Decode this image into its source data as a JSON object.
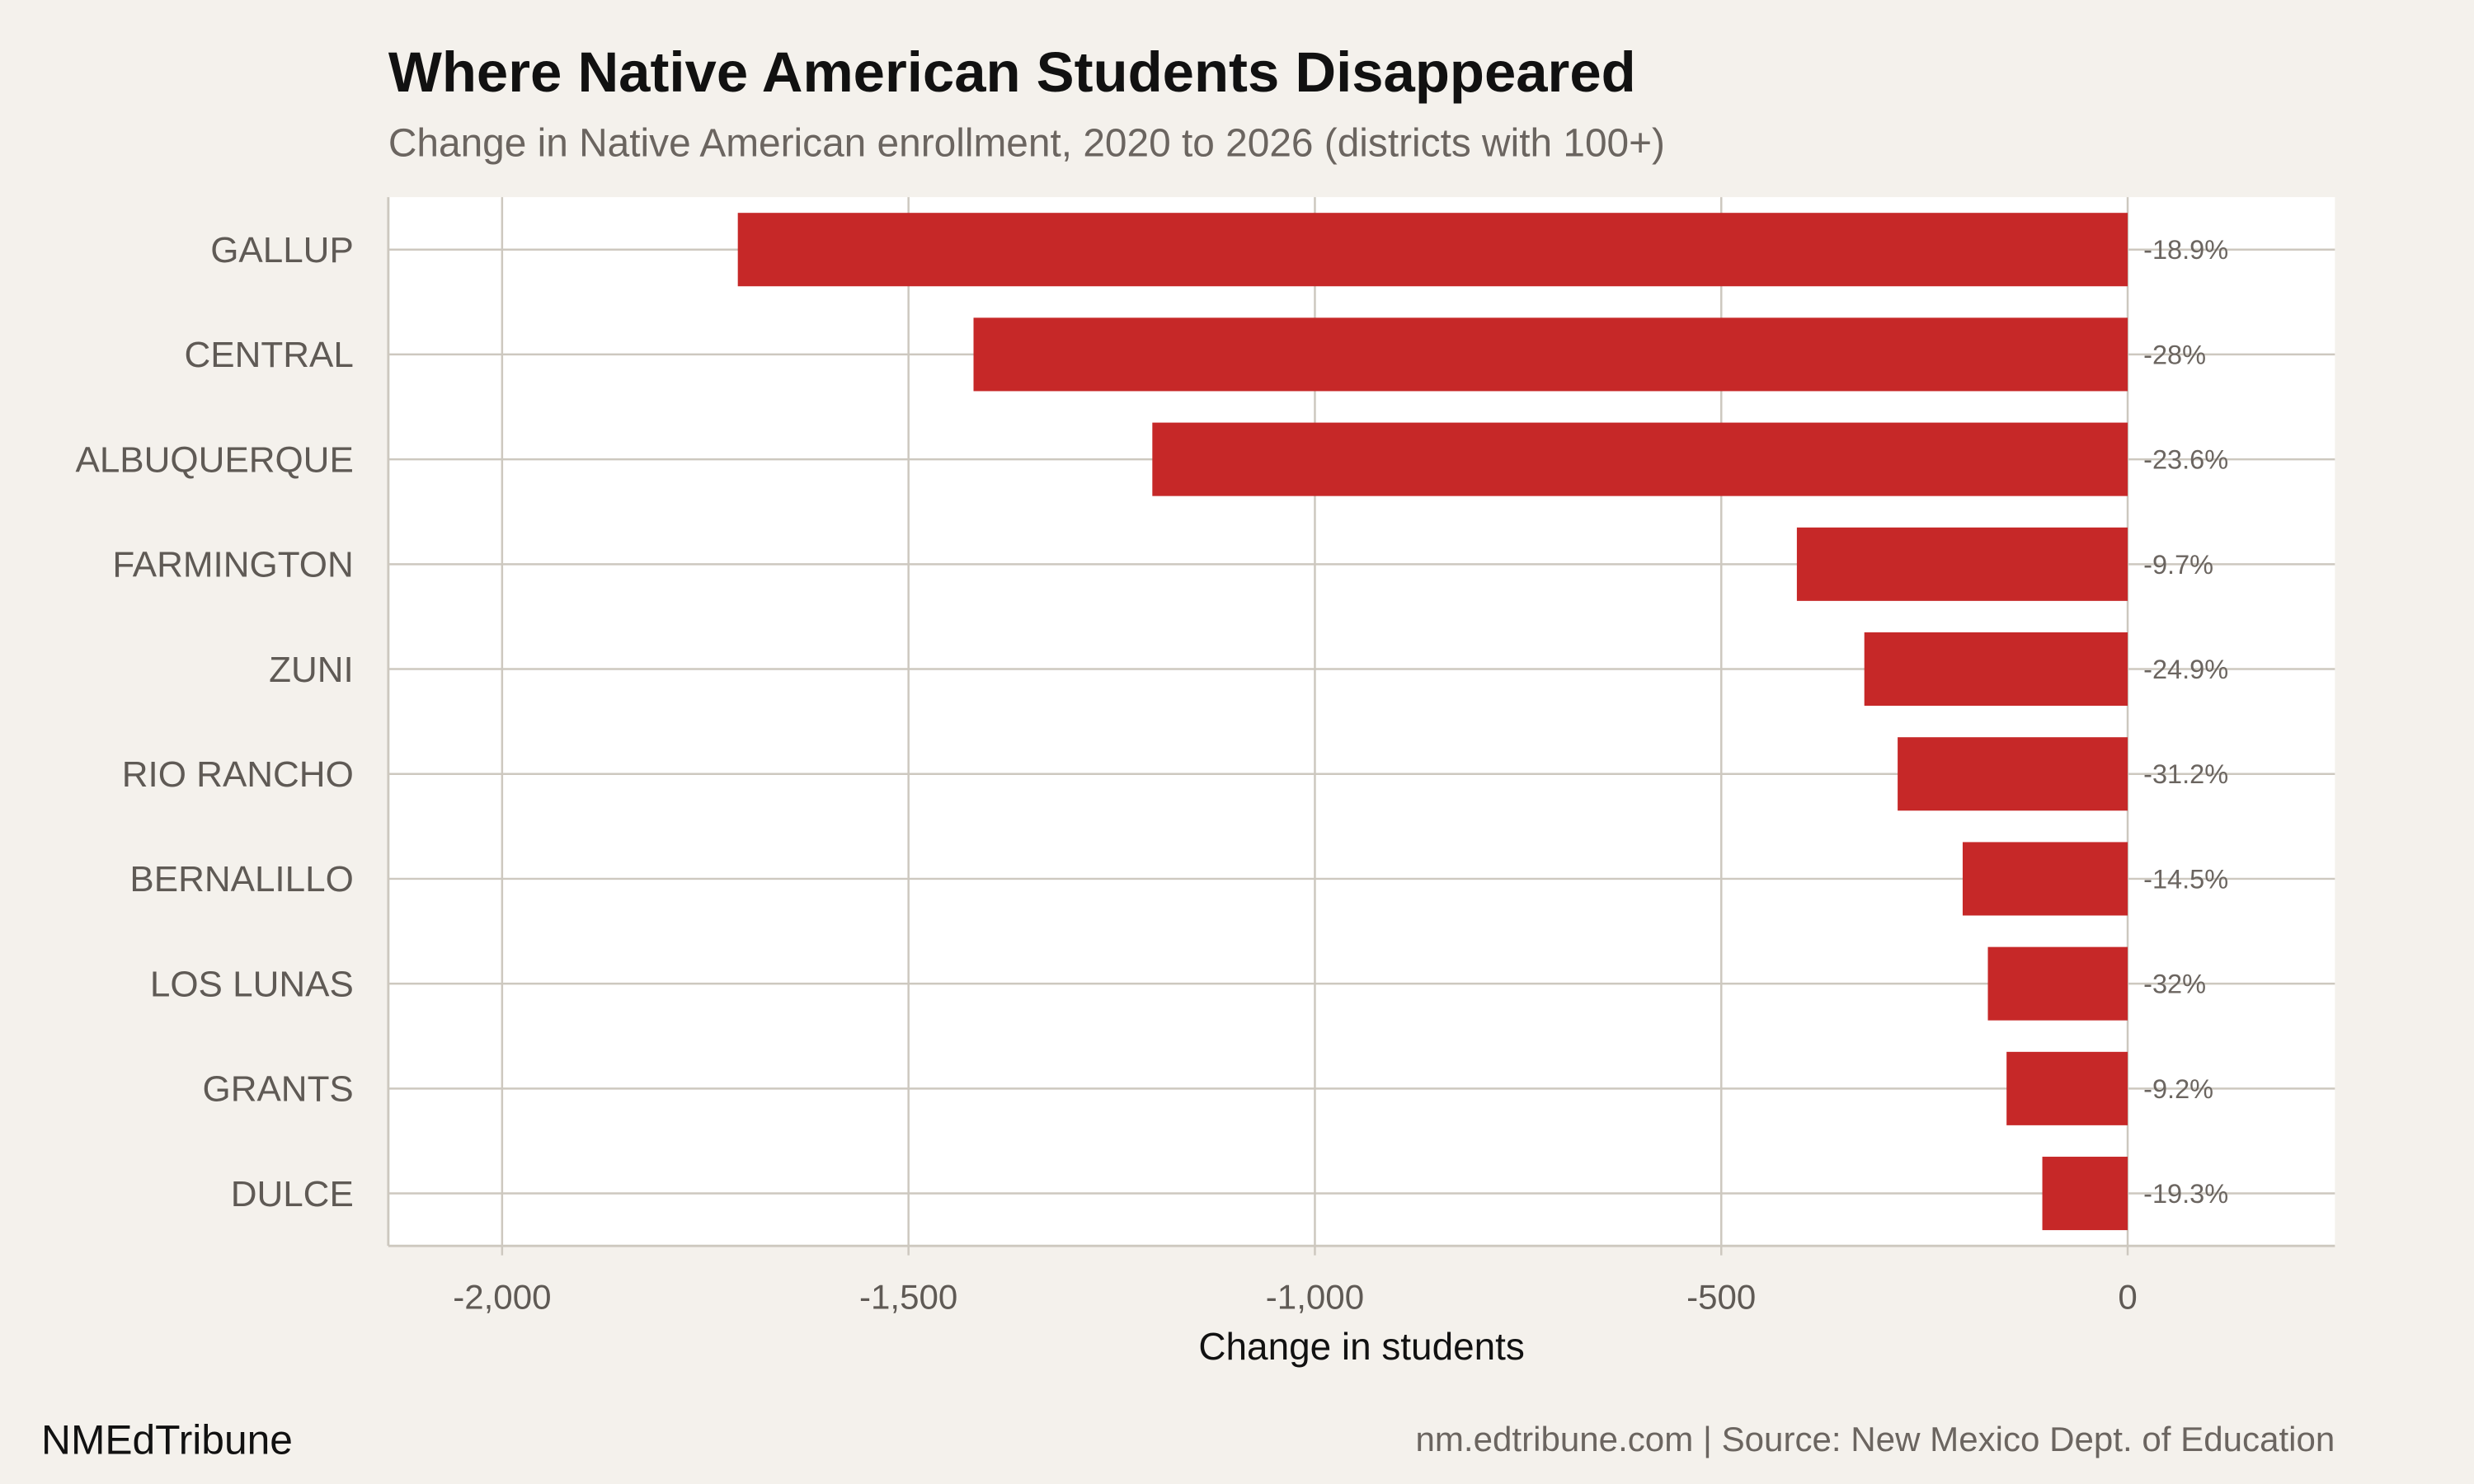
{
  "chart_data": {
    "type": "bar",
    "orientation": "horizontal",
    "title": "Where Native American Students Disappeared",
    "subtitle": "Change in Native American enrollment, 2020 to 2026 (districts with 100+)",
    "xlabel": "Change in students",
    "ylabel": "",
    "xlim": [
      -2140,
      255
    ],
    "xticks": [
      -2000,
      -1500,
      -1000,
      -500,
      0
    ],
    "xtick_labels": [
      "-2,000",
      "-1,500",
      "-1,000",
      "-500",
      "0"
    ],
    "grid": true,
    "categories": [
      "GALLUP",
      "CENTRAL",
      "ALBUQUERQUE",
      "FARMINGTON",
      "ZUNI",
      "RIO RANCHO",
      "BERNALILLO",
      "LOS LUNAS",
      "GRANTS",
      "DULCE"
    ],
    "values": [
      -1710,
      -1420,
      -1200,
      -407,
      -324,
      -283,
      -203,
      -172,
      -149,
      -105
    ],
    "pct_labels": [
      "-18.9%",
      "-28%",
      "-23.6%",
      "-9.7%",
      "-24.9%",
      "-31.2%",
      "-14.5%",
      "-32%",
      "-9.2%",
      "-19.3%"
    ],
    "bar_color": "#c62828"
  },
  "footer": {
    "brand": "NMEdTribune",
    "source": "nm.edtribune.com | Source: New Mexico Dept. of Education"
  },
  "colors": {
    "background": "#f4f1ec",
    "panel": "#ffffff",
    "grid": "#cdc8bf"
  }
}
